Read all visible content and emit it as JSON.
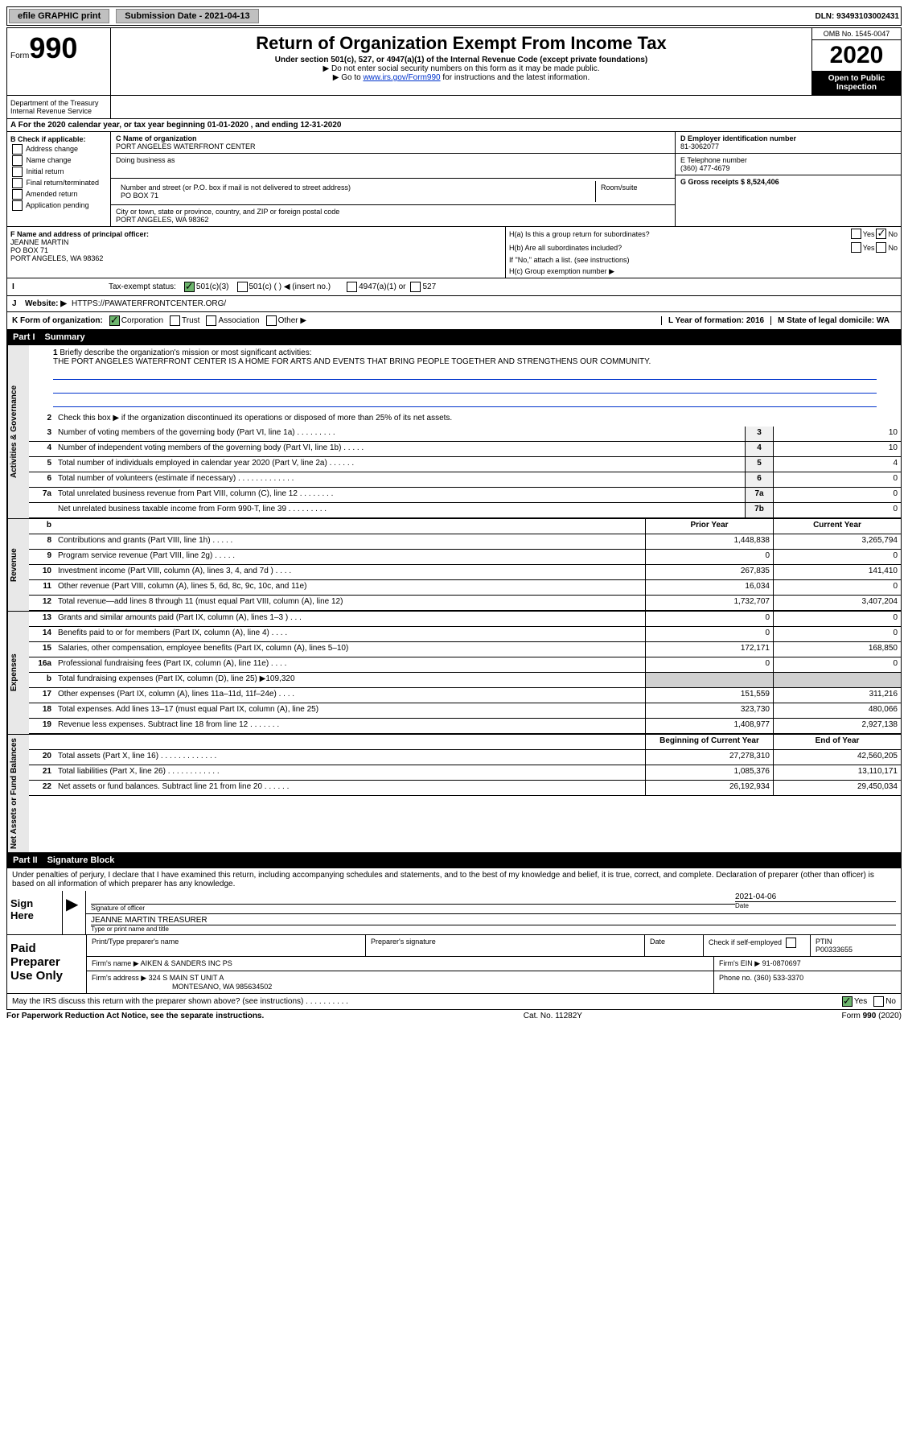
{
  "top": {
    "efile": "efile GRAPHIC print",
    "submission_label": "Submission Date - 2021-04-13",
    "dln": "DLN: 93493103002431"
  },
  "header": {
    "form_prefix": "Form",
    "form_number": "990",
    "title": "Return of Organization Exempt From Income Tax",
    "subtitle": "Under section 501(c), 527, or 4947(a)(1) of the Internal Revenue Code (except private foundations)",
    "note1": "▶ Do not enter social security numbers on this form as it may be made public.",
    "note2_prefix": "▶ Go to ",
    "note2_link": "www.irs.gov/Form990",
    "note2_suffix": " for instructions and the latest information.",
    "dept": "Department of the Treasury\nInternal Revenue Service",
    "omb": "OMB No. 1545-0047",
    "year": "2020",
    "open_public": "Open to Public Inspection"
  },
  "section_a": {
    "period": "For the 2020 calendar year, or tax year beginning 01-01-2020    , and ending 12-31-2020",
    "b_label": "B Check if applicable:",
    "b_opts": [
      "Address change",
      "Name change",
      "Initial return",
      "Final return/terminated",
      "Amended return",
      "Application pending"
    ],
    "c_name_label": "C Name of organization",
    "c_name": "PORT ANGELES WATERFRONT CENTER",
    "dba_label": "Doing business as",
    "addr_label": "Number and street (or P.O. box if mail is not delivered to street address)",
    "room_label": "Room/suite",
    "addr": "PO BOX 71",
    "city_label": "City or town, state or province, country, and ZIP or foreign postal code",
    "city": "PORT ANGELES, WA  98362",
    "d_label": "D Employer identification number",
    "d_val": "81-3062077",
    "e_label": "E Telephone number",
    "e_val": "(360) 477-4679",
    "g_label": "G Gross receipts $ 8,524,406",
    "f_label": "F  Name and address of principal officer:",
    "f_name": "JEANNE MARTIN",
    "f_addr1": "PO BOX 71",
    "f_addr2": "PORT ANGELES, WA  98362",
    "ha": "H(a)  Is this a group return for subordinates?",
    "hb": "H(b)  Are all subordinates included?",
    "hb_note": "If \"No,\" attach a list. (see instructions)",
    "hc": "H(c)  Group exemption number ▶",
    "yes": "Yes",
    "no": "No",
    "tax_label": "Tax-exempt status:",
    "s501c3": "501(c)(3)",
    "s501c": "501(c) (   ) ◀ (insert no.)",
    "s4947": "4947(a)(1) or",
    "s527": "527",
    "j_label": "J",
    "website_label": "Website: ▶",
    "website": "HTTPS://PAWATERFRONTCENTER.ORG/",
    "k_label": "K Form of organization:",
    "k_corp": "Corporation",
    "k_trust": "Trust",
    "k_assoc": "Association",
    "k_other": "Other ▶",
    "l_label": "L Year of formation: 2016",
    "m_label": "M State of legal domicile: WA"
  },
  "part1": {
    "label": "Part I",
    "title": "Summary",
    "side1": "Activities & Governance",
    "side2": "Revenue",
    "side3": "Expenses",
    "side4": "Net Assets or Fund Balances",
    "line1_label": "Briefly describe the organization's mission or most significant activities:",
    "mission": "THE PORT ANGELES WATERFRONT CENTER IS A HOME FOR ARTS AND EVENTS THAT BRING PEOPLE TOGETHER AND STRENGTHENS OUR COMMUNITY.",
    "line2": "Check this box ▶       if the organization discontinued its operations or disposed of more than 25% of its net assets.",
    "lines_gov": [
      {
        "n": "3",
        "t": "Number of voting members of the governing body (Part VI, line 1a)   .    .    .    .    .    .    .    .    .",
        "box": "3",
        "v": "10"
      },
      {
        "n": "4",
        "t": "Number of independent voting members of the governing body (Part VI, line 1b)   .    .    .    .    .",
        "box": "4",
        "v": "10"
      },
      {
        "n": "5",
        "t": "Total number of individuals employed in calendar year 2020 (Part V, line 2a)   .    .    .    .    .    .",
        "box": "5",
        "v": "4"
      },
      {
        "n": "6",
        "t": "Total number of volunteers (estimate if necessary)    .    .    .    .    .    .    .    .    .    .    .    .    .",
        "box": "6",
        "v": "0"
      },
      {
        "n": "7a",
        "t": "Total unrelated business revenue from Part VIII, column (C), line 12   .    .    .    .    .    .    .    .",
        "box": "7a",
        "v": "0"
      },
      {
        "n": "",
        "t": "Net unrelated business taxable income from Form 990-T, line 39   .    .    .    .    .    .    .    .    .",
        "box": "7b",
        "v": "0"
      }
    ],
    "col_prior": "Prior Year",
    "col_current": "Current Year",
    "lines_rev": [
      {
        "n": "8",
        "t": "Contributions and grants (Part VIII, line 1h)    .    .    .    .    .",
        "p": "1,448,838",
        "c": "3,265,794"
      },
      {
        "n": "9",
        "t": "Program service revenue (Part VIII, line 2g)    .    .    .    .    .",
        "p": "0",
        "c": "0"
      },
      {
        "n": "10",
        "t": "Investment income (Part VIII, column (A), lines 3, 4, and 7d )    .    .    .    .",
        "p": "267,835",
        "c": "141,410"
      },
      {
        "n": "11",
        "t": "Other revenue (Part VIII, column (A), lines 5, 6d, 8c, 9c, 10c, and 11e)",
        "p": "16,034",
        "c": "0"
      },
      {
        "n": "12",
        "t": "Total revenue—add lines 8 through 11 (must equal Part VIII, column (A), line 12)",
        "p": "1,732,707",
        "c": "3,407,204"
      }
    ],
    "lines_exp": [
      {
        "n": "13",
        "t": "Grants and similar amounts paid (Part IX, column (A), lines 1–3 )    .    .    .",
        "p": "0",
        "c": "0"
      },
      {
        "n": "14",
        "t": "Benefits paid to or for members (Part IX, column (A), line 4)    .    .    .    .",
        "p": "0",
        "c": "0"
      },
      {
        "n": "15",
        "t": "Salaries, other compensation, employee benefits (Part IX, column (A), lines 5–10)",
        "p": "172,171",
        "c": "168,850"
      },
      {
        "n": "16a",
        "t": "Professional fundraising fees (Part IX, column (A), line 11e)    .    .    .    .",
        "p": "0",
        "c": "0"
      },
      {
        "n": "b",
        "t": "Total fundraising expenses (Part IX, column (D), line 25) ▶109,320",
        "p": "",
        "c": "",
        "shaded": true
      },
      {
        "n": "17",
        "t": "Other expenses (Part IX, column (A), lines 11a–11d, 11f–24e)    .    .    .    .",
        "p": "151,559",
        "c": "311,216"
      },
      {
        "n": "18",
        "t": "Total expenses. Add lines 13–17 (must equal Part IX, column (A), line 25)",
        "p": "323,730",
        "c": "480,066"
      },
      {
        "n": "19",
        "t": "Revenue less expenses. Subtract line 18 from line 12   .    .    .    .    .    .    .",
        "p": "1,408,977",
        "c": "2,927,138"
      }
    ],
    "col_begin": "Beginning of Current Year",
    "col_end": "End of Year",
    "lines_net": [
      {
        "n": "20",
        "t": "Total assets (Part X, line 16)   .    .    .    .    .    .    .    .    .    .    .    .    .",
        "p": "27,278,310",
        "c": "42,560,205"
      },
      {
        "n": "21",
        "t": "Total liabilities (Part X, line 26)   .    .    .    .    .    .    .    .    .    .    .    .",
        "p": "1,085,376",
        "c": "13,110,171"
      },
      {
        "n": "22",
        "t": "Net assets or fund balances. Subtract line 21 from line 20   .    .    .    .    .    .",
        "p": "26,192,934",
        "c": "29,450,034"
      }
    ]
  },
  "part2": {
    "label": "Part II",
    "title": "Signature Block",
    "decl": "Under penalties of perjury, I declare that I have examined this return, including accompanying schedules and statements, and to the best of my knowledge and belief, it is true, correct, and complete. Declaration of preparer (other than officer) is based on all information of which preparer has any knowledge.",
    "sign_here": "Sign Here",
    "sig_officer": "Signature of officer",
    "sig_date": "2021-04-06",
    "date_label": "Date",
    "officer_name": "JEANNE MARTIN  TREASURER",
    "type_label": "Type or print name and title",
    "paid_prep": "Paid Preparer Use Only",
    "print_name_label": "Print/Type preparer's name",
    "prep_sig_label": "Preparer's signature",
    "check_self": "Check        if self-employed",
    "ptin_label": "PTIN",
    "ptin": "P00333655",
    "firm_name_label": "Firm's name     ▶",
    "firm_name": "AIKEN & SANDERS INC PS",
    "firm_ein_label": "Firm's EIN ▶",
    "firm_ein": "91-0870697",
    "firm_addr_label": "Firm's address ▶",
    "firm_addr1": "324 S MAIN ST UNIT A",
    "firm_addr2": "MONTESANO, WA  985634502",
    "phone_label": "Phone no.",
    "phone": "(360) 533-3370",
    "discuss": "May the IRS discuss this return with the preparer shown above? (see instructions)     .    .    .    .    .    .    .    .    .    .",
    "paperwork": "For Paperwork Reduction Act Notice, see the separate instructions.",
    "cat": "Cat. No. 11282Y",
    "form_footer": "Form 990 (2020)"
  }
}
